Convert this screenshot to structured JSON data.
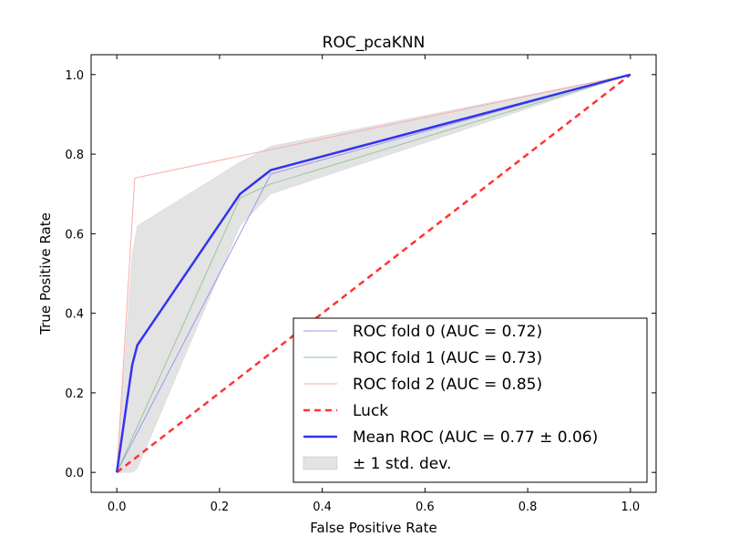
{
  "chart_data": {
    "type": "line",
    "title": "ROC_pcaKNN",
    "xlabel": "False Positive Rate",
    "ylabel": "True Positive Rate",
    "xlim": [
      -0.05,
      1.05
    ],
    "ylim": [
      -0.05,
      1.05
    ],
    "xticks": [
      "0.0",
      "0.2",
      "0.4",
      "0.6",
      "0.8",
      "1.0"
    ],
    "yticks": [
      "0.0",
      "0.2",
      "0.4",
      "0.6",
      "0.8",
      "1.0"
    ],
    "grid": false,
    "legend_position": "lower right",
    "series": [
      {
        "name": "ROC fold 0 (AUC = 0.72)",
        "style": "solid",
        "color": "#9999ee",
        "x": [
          0.0,
          0.3,
          1.0
        ],
        "y": [
          0.0,
          0.75,
          1.0
        ]
      },
      {
        "name": "ROC fold 1 (AUC = 0.73)",
        "style": "solid",
        "color": "#99c699",
        "x": [
          0.0,
          0.24,
          0.3,
          1.0
        ],
        "y": [
          0.0,
          0.69,
          0.725,
          1.0
        ]
      },
      {
        "name": "ROC fold 2 (AUC = 0.85)",
        "style": "solid",
        "color": "#ffaaaa",
        "x": [
          0.0,
          0.035,
          1.0
        ],
        "y": [
          0.0,
          0.74,
          1.0
        ]
      },
      {
        "name": "Luck",
        "style": "dashed",
        "color": "#ff3333",
        "x": [
          0.0,
          1.0
        ],
        "y": [
          0.0,
          1.0
        ]
      },
      {
        "name": "Mean ROC (AUC = 0.77 ± 0.06)",
        "style": "solid",
        "color": "#3333ee",
        "x": [
          0.0,
          0.03,
          0.04,
          0.24,
          0.3,
          1.0
        ],
        "y": [
          0.0,
          0.27,
          0.32,
          0.7,
          0.76,
          1.0
        ]
      }
    ],
    "band": {
      "name": "± 1 std. dev.",
      "color": "#e3e3e3",
      "x": [
        0.0,
        0.03,
        0.04,
        0.24,
        0.3,
        1.0
      ],
      "upper": [
        0.0,
        0.55,
        0.62,
        0.78,
        0.82,
        1.0
      ],
      "lower": [
        0.0,
        0.0,
        0.01,
        0.62,
        0.7,
        1.0
      ]
    }
  }
}
